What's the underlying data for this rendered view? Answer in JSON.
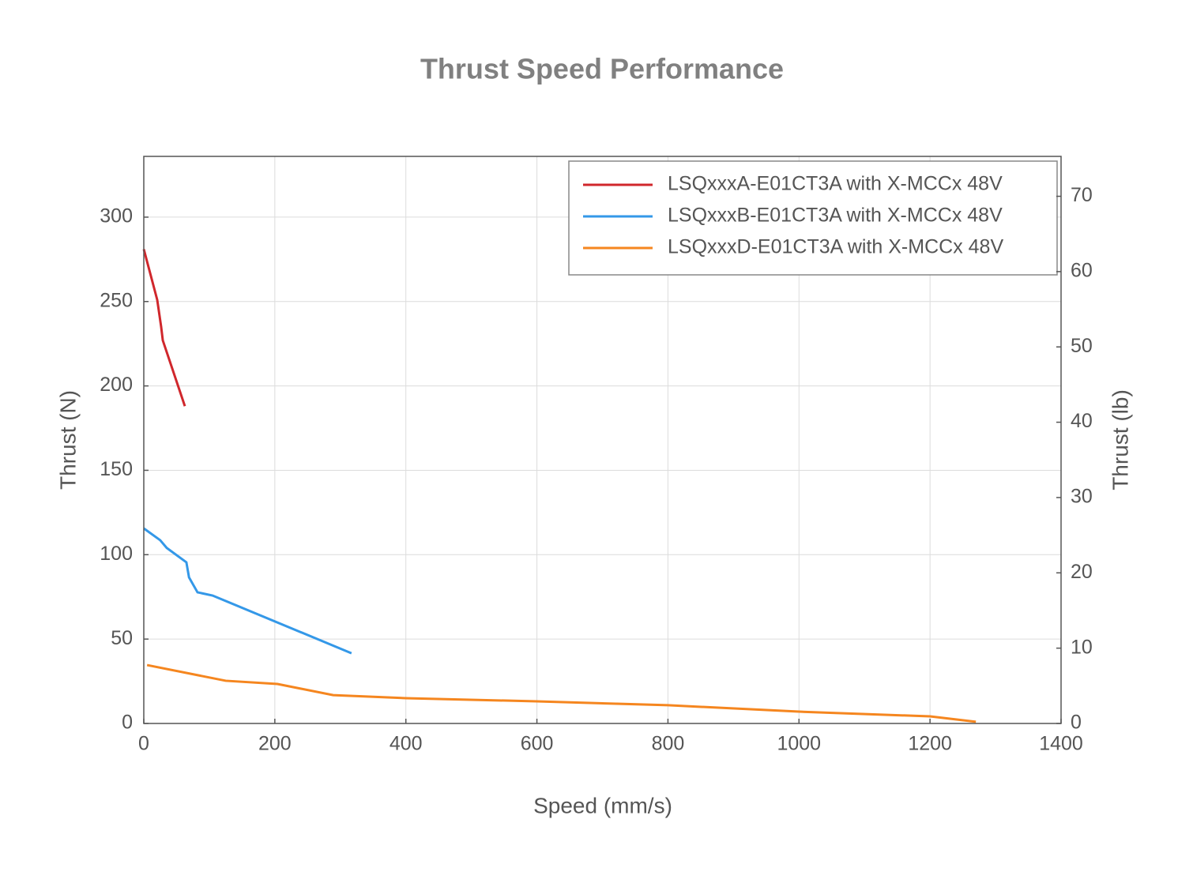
{
  "chart_data": {
    "type": "line",
    "title": "Thrust Speed Performance",
    "x_label": "Speed (mm/s)",
    "y_label": "Thrust (N)",
    "y2_label": "Thrust (lb)",
    "xlim": [
      0,
      1400
    ],
    "xticks": [
      0,
      200,
      400,
      600,
      800,
      1000,
      1200,
      1400
    ],
    "ylim": [
      0,
      336
    ],
    "yticks": [
      0,
      50,
      100,
      150,
      200,
      250,
      300
    ],
    "y2lim": [
      0,
      75.3
    ],
    "y2ticks": [
      0,
      10,
      20,
      30,
      40,
      50,
      60,
      70
    ],
    "grid": true,
    "legend": "upper-right",
    "series": [
      {
        "name": "LSQxxxA-E01CT3A with X-MCCx 48V",
        "color": "#d0272c",
        "x": [
          0,
          20.5,
          26.5,
          29,
          62.7
        ],
        "values": [
          281,
          251,
          235,
          227,
          188
        ]
      },
      {
        "name": "LSQxxxB-E01CT3A with X-MCCx 48V",
        "color": "#3498e8",
        "x": [
          0,
          25,
          35,
          65,
          69,
          82,
          105,
          317
        ],
        "values": [
          115.6,
          108.6,
          104,
          95.5,
          86.6,
          77.7,
          75.8,
          41.6
        ]
      },
      {
        "name": "LSQxxxD-E01CT3A with X-MCCx 48V",
        "color": "#f5861f",
        "x": [
          5,
          125,
          204,
          240,
          289,
          400,
          600,
          800,
          1000,
          1200,
          1270
        ],
        "values": [
          34.6,
          25.3,
          23.4,
          20.6,
          16.8,
          15,
          13.1,
          10.8,
          7,
          4.2,
          1
        ]
      }
    ]
  }
}
